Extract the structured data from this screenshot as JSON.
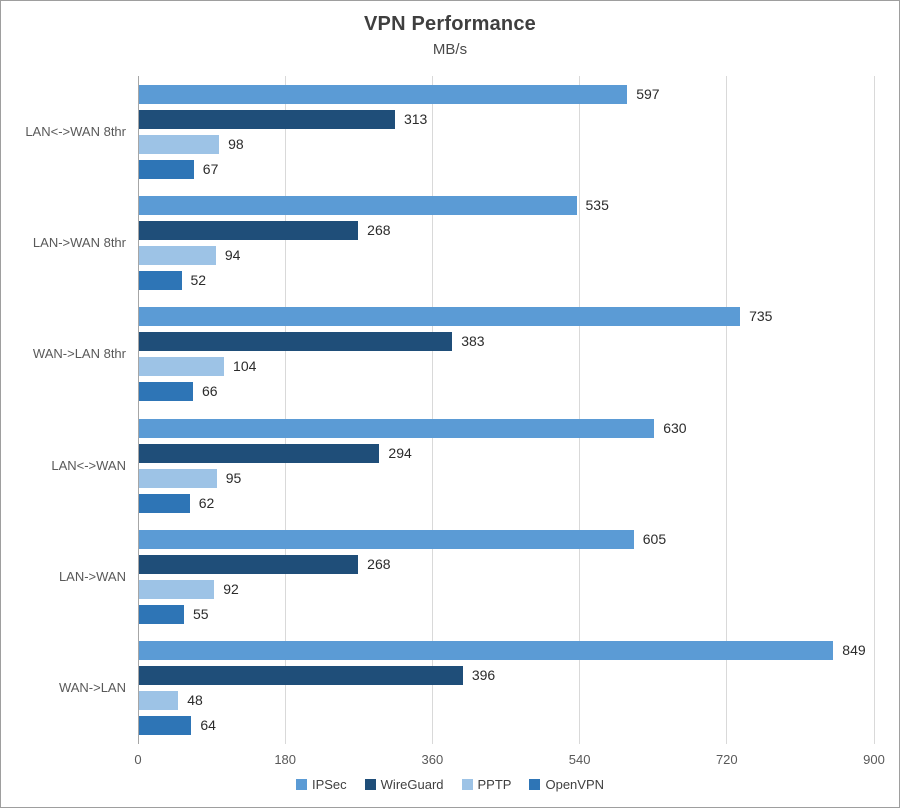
{
  "chart_data": {
    "type": "bar",
    "orientation": "horizontal",
    "title": "VPN Performance",
    "subtitle": "MB/s",
    "categories": [
      "LAN<->WAN 8thr",
      "LAN->WAN 8thr",
      "WAN->LAN 8thr",
      "LAN<->WAN",
      "LAN->WAN",
      "WAN->LAN"
    ],
    "series": [
      {
        "name": "IPSec",
        "color": "#5B9BD5",
        "values": [
          597,
          535,
          735,
          630,
          605,
          849
        ]
      },
      {
        "name": "WireGuard",
        "color": "#1F4E79",
        "values": [
          313,
          268,
          383,
          294,
          268,
          396
        ]
      },
      {
        "name": "PPTP",
        "color": "#9DC3E6",
        "values": [
          98,
          94,
          104,
          95,
          92,
          48
        ]
      },
      {
        "name": "OpenVPN",
        "color": "#2E75B6",
        "values": [
          67,
          52,
          66,
          62,
          55,
          64
        ]
      }
    ],
    "xlim": [
      0,
      900
    ],
    "x_ticks": [
      0,
      180,
      360,
      540,
      720,
      900
    ],
    "grid": true,
    "data_labels": true,
    "legend_position": "bottom"
  },
  "colors": {
    "background": "#FFFFFF",
    "border": "#9E9E9E",
    "gridline": "#D9D9D9",
    "axis_line": "#A6A6A6",
    "title_text": "#3F3F3F",
    "tick_text": "#595959",
    "value_label_text": "#2B2B2B"
  }
}
